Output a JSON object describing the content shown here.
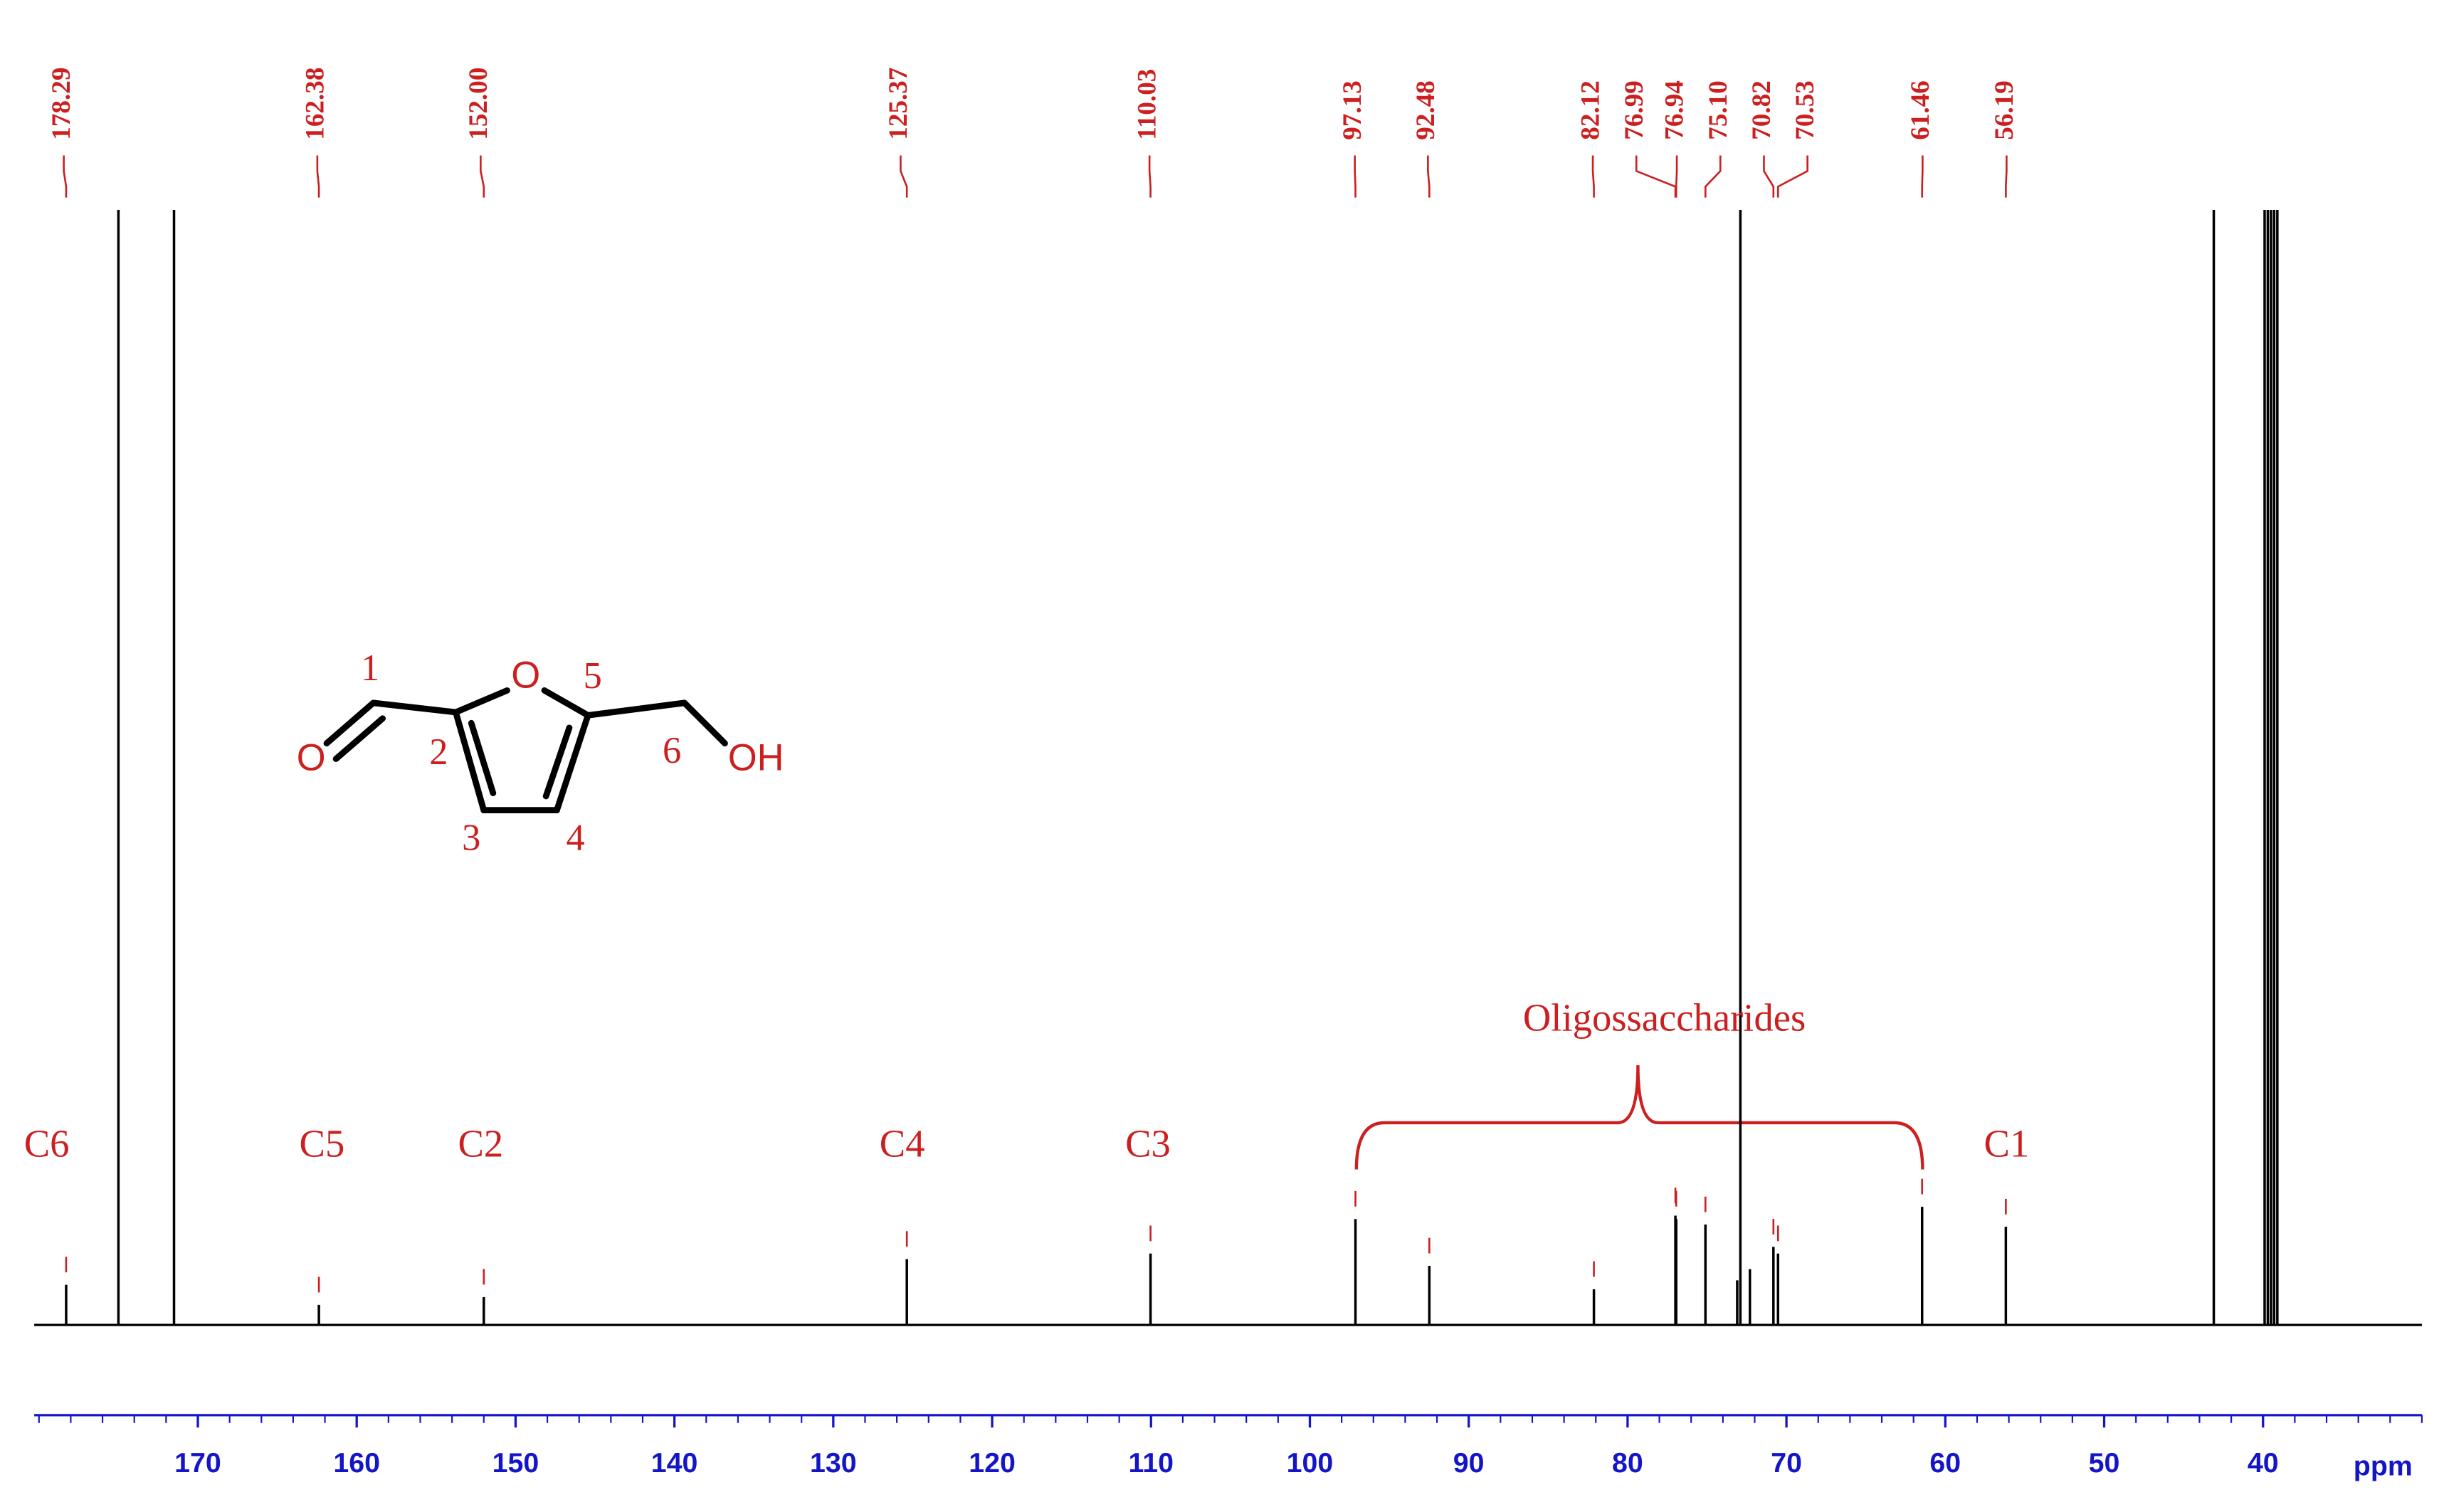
{
  "chart_data": {
    "type": "spectrum",
    "x": [
      178.29,
      162.38,
      152.0,
      125.37,
      110.03,
      97.13,
      92.48,
      82.12,
      76.99,
      76.94,
      75.1,
      70.82,
      70.53,
      61.46,
      56.19,
      175.0,
      171.5,
      73.1,
      72.9,
      72.3,
      43.1,
      39.9,
      39.7,
      39.5,
      39.3,
      39.1
    ],
    "values": [
      3.6,
      1.8,
      2.5,
      5.9,
      6.4,
      9.5,
      5.3,
      3.2,
      9.8,
      9.5,
      9.0,
      7.0,
      6.4,
      10.6,
      8.8,
      100,
      100,
      4,
      100,
      5,
      100,
      100,
      100,
      100,
      100,
      100
    ],
    "peak_labels": [
      "178.29",
      "162.38",
      "152.00",
      "125.37",
      "110.03",
      "97.13",
      "92.48",
      "82.12",
      "76.99",
      "76.94",
      "75.10",
      "70.82",
      "70.53",
      "61.46",
      "56.19",
      null,
      null,
      null,
      null,
      null,
      null,
      null,
      null,
      null,
      null,
      null
    ],
    "color": "#000000",
    "label_color": "#cc1f1f",
    "axis_color": "#1515c8",
    "xlim": [
      180.3,
      30
    ],
    "xticks": [
      170,
      160,
      150,
      140,
      130,
      120,
      110,
      100,
      90,
      80,
      70,
      60,
      50,
      40
    ],
    "ylim": [
      0,
      100
    ],
    "x_label": "ppm",
    "annotations": [
      "C6",
      "C5",
      "C2",
      "C4",
      "C3",
      "C1",
      "Oligossaccharides"
    ]
  },
  "structure": {
    "numbers": [
      1,
      2,
      3,
      4,
      5,
      6
    ],
    "ring_oxygen": "O",
    "carbonyl_oxygen": "O",
    "hydroxyl": "OH"
  }
}
